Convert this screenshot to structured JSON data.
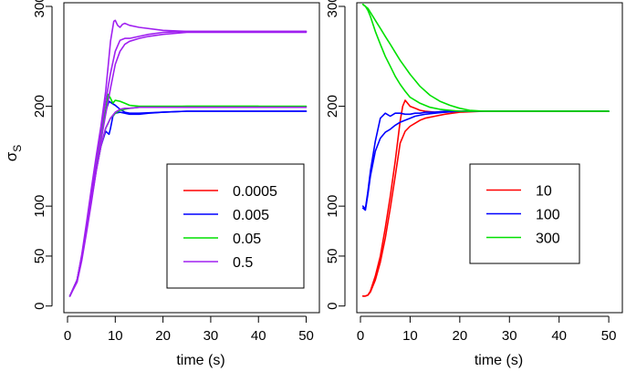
{
  "figure": {
    "ylabel": "σ",
    "ylabel_sub": "S"
  },
  "chart_data": [
    {
      "type": "line",
      "name": "left-panel",
      "xlabel": "time (s)",
      "ylabel": "σS",
      "xlim": [
        0,
        52
      ],
      "ylim": [
        -3,
        300
      ],
      "xticks": [
        0,
        10,
        20,
        30,
        40,
        50
      ],
      "yticks": [
        0,
        50,
        100,
        200,
        300
      ],
      "legend": {
        "position": "bottom-right",
        "entries": [
          "0.0005",
          "0.005",
          "0.05",
          "0.5"
        ]
      },
      "series": [
        {
          "name": "0.0005",
          "color": "#ff0000",
          "curves": []
        },
        {
          "name": "0.005",
          "color": "#0000ff",
          "curves": [
            {
              "x": [
                0.5,
                2,
                3,
                4,
                5,
                6,
                7,
                8,
                8.7,
                9,
                9.5,
                10,
                11,
                12,
                13,
                15,
                17,
                20,
                25,
                30,
                40,
                50
              ],
              "y": [
                10,
                26,
                50,
                78,
                107,
                136,
                160,
                175,
                172,
                178,
                190,
                193,
                194,
                193,
                192,
                192,
                193,
                194,
                195,
                195,
                195,
                195
              ]
            },
            {
              "x": [
                0.5,
                2,
                3,
                4,
                5,
                6,
                7,
                8,
                8.7,
                9.3,
                10,
                10.5,
                11,
                12,
                13,
                15,
                20,
                25,
                30,
                40,
                50
              ],
              "y": [
                10,
                26,
                50,
                80,
                110,
                140,
                168,
                195,
                205,
                203,
                201,
                199,
                197,
                194,
                193,
                193,
                194,
                195,
                195,
                195,
                195
              ]
            }
          ]
        },
        {
          "name": "0.05",
          "color": "#00e000",
          "curves": [
            {
              "x": [
                0.5,
                2,
                3,
                4,
                5,
                6,
                7,
                8,
                9,
                10,
                11,
                12,
                13,
                15,
                17,
                20,
                25,
                30,
                40,
                50
              ],
              "y": [
                10,
                26,
                50,
                78,
                107,
                136,
                160,
                178,
                188,
                193,
                196,
                197,
                198,
                199,
                199,
                199,
                200,
                200,
                200,
                200
              ]
            },
            {
              "x": [
                0.5,
                2,
                3,
                4,
                5,
                6,
                7,
                8,
                8.5,
                9,
                9.5,
                10,
                11,
                12,
                13,
                15,
                20,
                25,
                30,
                40
              ],
              "y": [
                10,
                26,
                50,
                80,
                110,
                140,
                170,
                196,
                212,
                208,
                203,
                206,
                205,
                203,
                201,
                200,
                200,
                200,
                200,
                200
              ]
            }
          ]
        },
        {
          "name": "0.5",
          "color": "#a020f0",
          "curves": [
            {
              "x": [
                0.5,
                2,
                3,
                4,
                5,
                6,
                7,
                8,
                8.5,
                9,
                9.7,
                10,
                10.5,
                11,
                11.5,
                12,
                13,
                15,
                20,
                25,
                30,
                40,
                50
              ],
              "y": [
                10,
                26,
                52,
                84,
                118,
                150,
                180,
                215,
                240,
                265,
                285,
                286,
                281,
                279,
                282,
                283,
                281,
                279,
                276,
                275,
                275,
                275,
                275
              ]
            },
            {
              "x": [
                0.5,
                2,
                3,
                4,
                5,
                6,
                7,
                8,
                9,
                10,
                11,
                12,
                13,
                15,
                17,
                20,
                25,
                30,
                40,
                50
              ],
              "y": [
                10,
                26,
                50,
                80,
                112,
                145,
                175,
                205,
                233,
                255,
                266,
                268,
                268,
                270,
                272,
                274,
                275,
                275,
                275,
                275
              ]
            },
            {
              "x": [
                0.5,
                2,
                3,
                4,
                5,
                6,
                7,
                8,
                9,
                10,
                11,
                12,
                13,
                15,
                17,
                20,
                25,
                30,
                40,
                50
              ],
              "y": [
                10,
                24,
                46,
                74,
                104,
                135,
                165,
                192,
                218,
                242,
                255,
                262,
                265,
                268,
                270,
                272,
                274,
                274,
                274,
                274
              ]
            },
            {
              "x": [
                0.5,
                2,
                3,
                4,
                5,
                6,
                7,
                8,
                9,
                10,
                11,
                12,
                13,
                15,
                17,
                20,
                25,
                30,
                40,
                50
              ],
              "y": [
                10,
                26,
                50,
                78,
                106,
                135,
                160,
                178,
                188,
                194,
                197,
                198,
                198,
                199,
                199,
                199,
                199,
                199,
                199,
                199
              ]
            }
          ]
        }
      ]
    },
    {
      "type": "line",
      "name": "right-panel",
      "xlabel": "time (s)",
      "xlim": [
        0,
        52
      ],
      "ylim": [
        -3,
        300
      ],
      "xticks": [
        0,
        10,
        20,
        30,
        40,
        50
      ],
      "yticks": [
        0,
        50,
        100,
        200,
        300
      ],
      "legend": {
        "position": "bottom-right",
        "entries": [
          "10",
          "100",
          "300"
        ]
      },
      "series": [
        {
          "name": "10",
          "color": "#ff0000",
          "curves": [
            {
              "x": [
                0.5,
                1,
                1.5,
                2,
                3,
                4,
                5,
                6,
                7,
                8,
                8.5,
                9,
                9.5,
                10,
                11,
                12,
                13,
                15,
                17,
                20,
                25,
                30,
                40,
                50
              ],
              "y": [
                10,
                10,
                11,
                15,
                30,
                50,
                78,
                110,
                145,
                185,
                200,
                206,
                203,
                200,
                198,
                196,
                195,
                194,
                194,
                195,
                195,
                195,
                195,
                195
              ]
            },
            {
              "x": [
                0.5,
                1,
                1.5,
                2,
                3,
                4,
                5,
                6,
                7,
                8,
                9,
                10,
                11,
                12,
                13,
                15,
                17,
                20,
                25,
                30,
                40,
                50
              ],
              "y": [
                10,
                10,
                11,
                14,
                26,
                44,
                68,
                98,
                130,
                163,
                175,
                180,
                183,
                186,
                188,
                190,
                192,
                194,
                195,
                195,
                195,
                195
              ]
            }
          ]
        },
        {
          "name": "100",
          "color": "#0000ff",
          "curves": [
            {
              "x": [
                0.5,
                1,
                1.5,
                2,
                3,
                4,
                5,
                6,
                7,
                8,
                9,
                10,
                11,
                12,
                13,
                15,
                17,
                20,
                25,
                30,
                40,
                50
              ],
              "y": [
                100,
                97,
                115,
                135,
                165,
                188,
                193,
                190,
                193,
                193,
                192,
                192,
                193,
                193,
                194,
                194,
                195,
                195,
                195,
                195,
                195,
                195
              ]
            },
            {
              "x": [
                0.5,
                1,
                1.5,
                2,
                3,
                4,
                5,
                6,
                7,
                8,
                9,
                10,
                11,
                12,
                13,
                15,
                17,
                20,
                25,
                30,
                40,
                50
              ],
              "y": [
                98,
                96,
                112,
                130,
                155,
                168,
                174,
                177,
                181,
                184,
                186,
                188,
                190,
                191,
                192,
                193,
                194,
                195,
                195,
                195,
                195,
                195
              ]
            }
          ]
        },
        {
          "name": "300",
          "color": "#00e000",
          "curves": [
            {
              "x": [
                0.5,
                1,
                1.5,
                2,
                3,
                4,
                5,
                6,
                7,
                8,
                9,
                10,
                12,
                14,
                16,
                18,
                20,
                22,
                25,
                30,
                40,
                50
              ],
              "y": [
                302,
                300,
                296,
                290,
                275,
                262,
                250,
                240,
                230,
                222,
                215,
                209,
                203,
                199,
                197,
                196,
                195,
                195,
                195,
                195,
                195,
                195
              ]
            },
            {
              "x": [
                0.5,
                1,
                1.5,
                2,
                3,
                4,
                5,
                6,
                7,
                8,
                10,
                12,
                14,
                16,
                18,
                20,
                22,
                25,
                30,
                40,
                50
              ],
              "y": [
                302,
                300,
                298,
                294,
                286,
                278,
                270,
                262,
                254,
                246,
                232,
                220,
                211,
                205,
                201,
                198,
                196,
                195,
                195,
                195,
                195
              ]
            }
          ]
        }
      ]
    }
  ]
}
